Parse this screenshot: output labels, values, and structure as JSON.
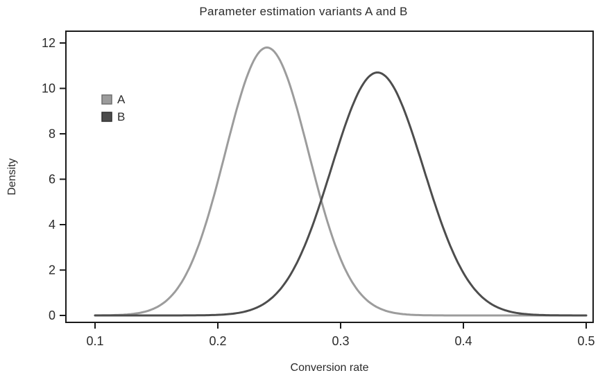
{
  "chart_data": {
    "type": "line",
    "title": "Parameter estimation variants A and B",
    "xlabel": "Conversion rate",
    "ylabel": "Density",
    "xlim": [
      0.1,
      0.5
    ],
    "ylim": [
      0,
      12
    ],
    "grid": false,
    "legend_position": "upper-left",
    "axis_color": "#1a1a1a",
    "text_color": "#2b2b2b",
    "x_ticks": [
      {
        "value": 0.1,
        "label": "0.1"
      },
      {
        "value": 0.2,
        "label": "0.2"
      },
      {
        "value": 0.3,
        "label": "0.3"
      },
      {
        "value": 0.4,
        "label": "0.4"
      },
      {
        "value": 0.5,
        "label": "0.5"
      }
    ],
    "y_ticks": [
      {
        "value": 0,
        "label": "0"
      },
      {
        "value": 2,
        "label": "2"
      },
      {
        "value": 4,
        "label": "4"
      },
      {
        "value": 6,
        "label": "6"
      },
      {
        "value": 8,
        "label": "8"
      },
      {
        "value": 10,
        "label": "10"
      },
      {
        "value": 12,
        "label": "12"
      }
    ],
    "series": [
      {
        "name": "A",
        "distribution": "normal-pdf-scaled",
        "mean": 0.24,
        "sd": 0.034,
        "peak": 11.8,
        "color": "#9c9c9c",
        "swatch_border": "#6e6e6e"
      },
      {
        "name": "B",
        "distribution": "normal-pdf-scaled",
        "mean": 0.33,
        "sd": 0.0375,
        "peak": 10.7,
        "color": "#4d4d4d",
        "swatch_border": "#2e2e2e"
      }
    ]
  }
}
